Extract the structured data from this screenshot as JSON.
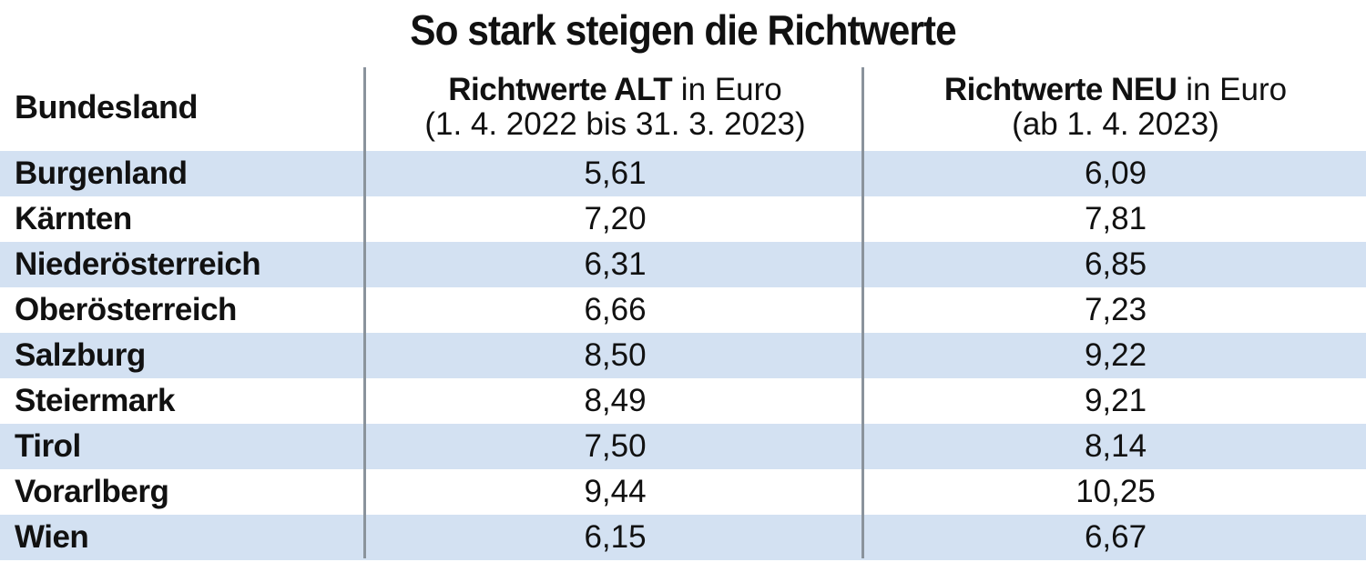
{
  "title": "So stark steigen die Richtwerte",
  "chart_data": {
    "type": "table",
    "title": "So stark steigen die Richtwerte",
    "columns": [
      {
        "name": "Bundesland"
      },
      {
        "name_bold": "Richtwerte ALT",
        "name_rest": " in Euro",
        "sub": "(1. 4. 2022 bis 31. 3. 2023)"
      },
      {
        "name_bold": "Richtwerte NEU",
        "name_rest": " in Euro",
        "sub": "(ab 1. 4. 2023)"
      }
    ],
    "rows": [
      {
        "land": "Burgenland",
        "alt": "5,61",
        "neu": "6,09"
      },
      {
        "land": "Kärnten",
        "alt": "7,20",
        "neu": "7,81"
      },
      {
        "land": "Niederösterreich",
        "alt": "6,31",
        "neu": "6,85"
      },
      {
        "land": "Oberösterreich",
        "alt": "6,66",
        "neu": "7,23"
      },
      {
        "land": "Salzburg",
        "alt": "8,50",
        "neu": "9,22"
      },
      {
        "land": "Steiermark",
        "alt": "8,49",
        "neu": "9,21"
      },
      {
        "land": "Tirol",
        "alt": "7,50",
        "neu": "8,14"
      },
      {
        "land": "Vorarlberg",
        "alt": "9,44",
        "neu": "10,25"
      },
      {
        "land": "Wien",
        "alt": "6,15",
        "neu": "6,67"
      }
    ],
    "stripe_color": "#d3e1f2",
    "divider_color": "#8a939c"
  }
}
